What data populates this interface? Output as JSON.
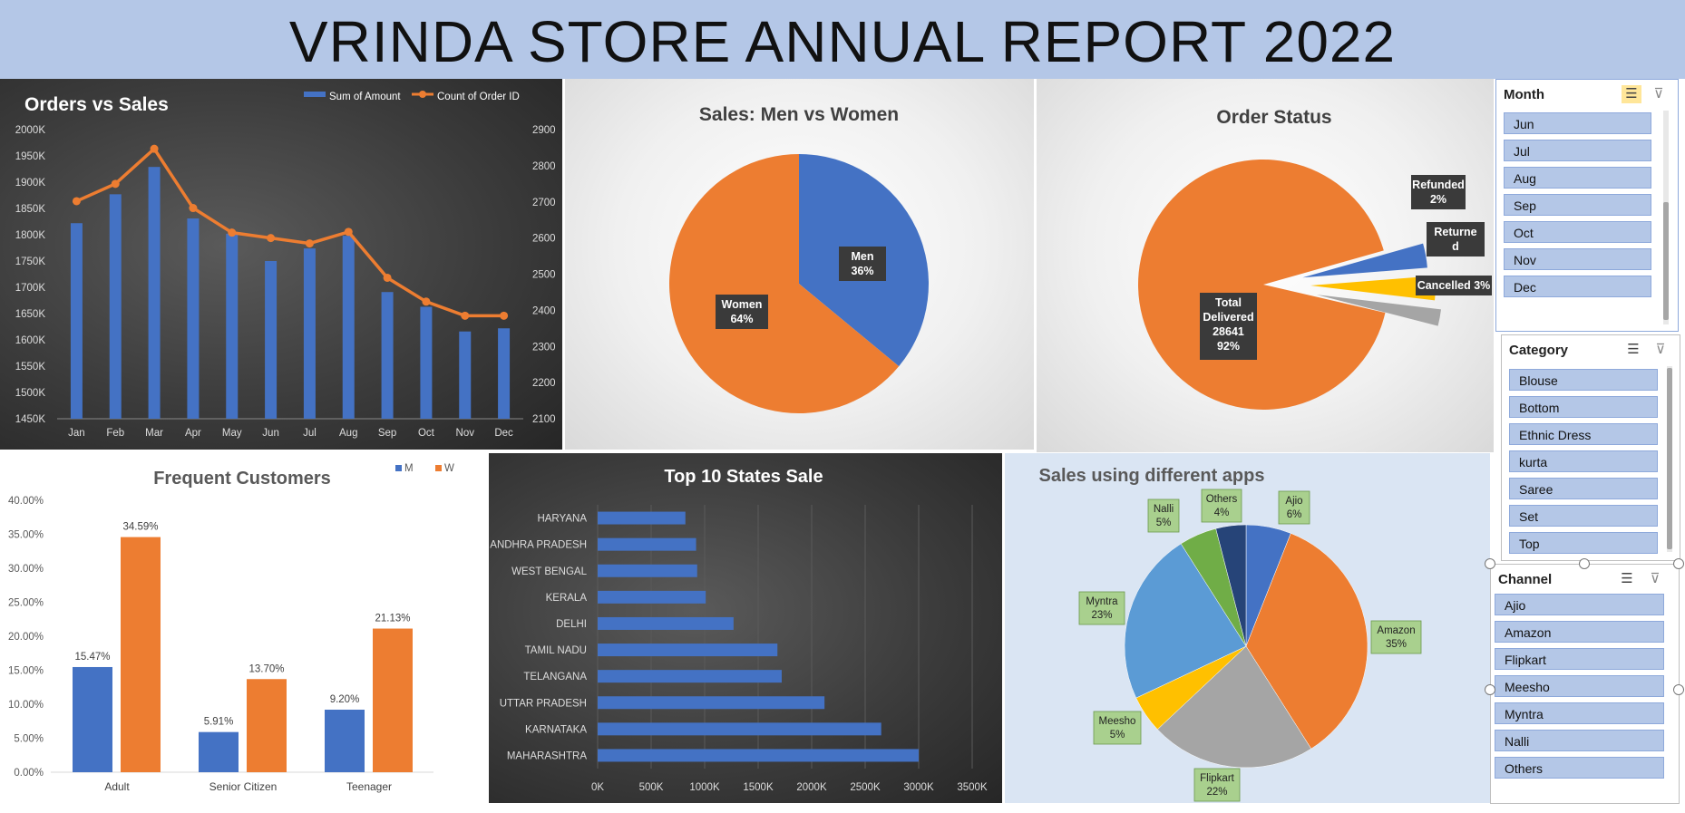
{
  "title": "VRINDA STORE ANNUAL REPORT 2022",
  "chart_data": [
    {
      "id": "orders_sales",
      "type": "bar+line",
      "title": "Orders vs Sales",
      "categories": [
        "Jan",
        "Feb",
        "Mar",
        "Apr",
        "May",
        "Jun",
        "Jul",
        "Aug",
        "Sep",
        "Oct",
        "Nov",
        "Dec"
      ],
      "series": [
        {
          "name": "Sum of Amount",
          "type": "bar",
          "axis": "left",
          "values": [
            1822000,
            1877000,
            1929000,
            1831000,
            1802000,
            1750000,
            1774000,
            1798000,
            1691000,
            1663000,
            1616000,
            1622000
          ]
        },
        {
          "name": "Count of Order ID",
          "type": "line",
          "axis": "right",
          "values": [
            2702,
            2750,
            2847,
            2683,
            2615,
            2600,
            2585,
            2617,
            2490,
            2424,
            2385,
            2385
          ]
        }
      ],
      "y_left": {
        "min": 1450000,
        "max": 2000000,
        "step": 50000,
        "ticks": [
          "1450K",
          "1500K",
          "1550K",
          "1600K",
          "1650K",
          "1700K",
          "1750K",
          "1800K",
          "1850K",
          "1900K",
          "1950K",
          "2000K"
        ]
      },
      "y_right": {
        "min": 2100,
        "max": 2900,
        "step": 100,
        "ticks": [
          "2100",
          "2200",
          "2300",
          "2400",
          "2500",
          "2600",
          "2700",
          "2800",
          "2900"
        ]
      },
      "legend": "top-right"
    },
    {
      "id": "men_women",
      "type": "pie",
      "title": "Sales: Men vs Women",
      "slices": [
        {
          "label": "Men",
          "value": 36,
          "text": "36%",
          "color": "#4472c4"
        },
        {
          "label": "Women",
          "value": 64,
          "text": "64%",
          "color": "#ed7d31"
        }
      ]
    },
    {
      "id": "order_status",
      "type": "pie",
      "title": "Order Status",
      "slices": [
        {
          "label": "Total Delivered",
          "value": 92,
          "count": "28641",
          "text": "92%",
          "color": "#ed7d31"
        },
        {
          "label": "Cancelled",
          "value": 3,
          "text": "3%",
          "color": "#4472c4"
        },
        {
          "label": "Returned",
          "value": 3,
          "text": "",
          "color": "#ffc000"
        },
        {
          "label": "Refunded",
          "value": 2,
          "text": "2%",
          "color": "#a5a5a5"
        }
      ],
      "label_lines": {
        "delivered": [
          "Total",
          "Delivered",
          "28641",
          "92%"
        ],
        "cancelled": "Cancelled 3%",
        "returned": [
          "Returne",
          "d"
        ],
        "refunded": [
          "Refunded",
          "2%"
        ]
      }
    },
    {
      "id": "frequent_customers",
      "type": "bar",
      "title": "Frequent Customers",
      "categories": [
        "Adult",
        "Senior Citizen",
        "Teenager"
      ],
      "series": [
        {
          "name": "M",
          "values": [
            15.47,
            5.91,
            9.2
          ],
          "labels": [
            "15.47%",
            "5.91%",
            "9.20%"
          ],
          "color": "#4472c4"
        },
        {
          "name": "W",
          "values": [
            34.59,
            13.7,
            21.13
          ],
          "labels": [
            "34.59%",
            "13.70%",
            "21.13%"
          ],
          "color": "#ed7d31"
        }
      ],
      "y": {
        "min": 0,
        "max": 40,
        "ticks": [
          "0.00%",
          "5.00%",
          "10.00%",
          "15.00%",
          "20.00%",
          "25.00%",
          "30.00%",
          "35.00%",
          "40.00%"
        ]
      },
      "legend": "top-right"
    },
    {
      "id": "top_states",
      "type": "bar",
      "orientation": "horizontal",
      "title": "Top 10 States Sale",
      "categories": [
        "HARYANA",
        "ANDHRA PRADESH",
        "WEST BENGAL",
        "KERALA",
        "DELHI",
        "TAMIL NADU",
        "TELANGANA",
        "UTTAR PRADESH",
        "KARNATAKA",
        "MAHARASHTRA"
      ],
      "values": [
        820000,
        920000,
        930000,
        1010000,
        1270000,
        1680000,
        1720000,
        2120000,
        2650000,
        3000000
      ],
      "x": {
        "min": 0,
        "max": 3500000,
        "ticks": [
          "0K",
          "500K",
          "1000K",
          "1500K",
          "2000K",
          "2500K",
          "3000K",
          "3500K"
        ]
      }
    },
    {
      "id": "apps",
      "type": "pie",
      "title": "Sales using different apps",
      "slices": [
        {
          "label": "Ajio",
          "value": 6,
          "text": "6%",
          "color": "#4472c4"
        },
        {
          "label": "Amazon",
          "value": 35,
          "text": "35%",
          "color": "#ed7d31"
        },
        {
          "label": "Flipkart",
          "value": 22,
          "text": "22%",
          "color": "#a5a5a5"
        },
        {
          "label": "Meesho",
          "value": 5,
          "text": "5%",
          "color": "#ffc000"
        },
        {
          "label": "Myntra",
          "value": 23,
          "text": "23%",
          "color": "#5b9bd5"
        },
        {
          "label": "Nalli",
          "value": 5,
          "text": "5%",
          "color": "#70ad47"
        },
        {
          "label": "Others",
          "value": 4,
          "text": "4%",
          "color": "#264478"
        }
      ]
    }
  ],
  "slicers": {
    "month": {
      "header": "Month",
      "items": [
        "Jun",
        "Jul",
        "Aug",
        "Sep",
        "Oct",
        "Nov",
        "Dec"
      ]
    },
    "category": {
      "header": "Category",
      "items": [
        "Blouse",
        "Bottom",
        "Ethnic Dress",
        "kurta",
        "Saree",
        "Set",
        "Top"
      ]
    },
    "channel": {
      "header": "Channel",
      "items": [
        "Ajio",
        "Amazon",
        "Flipkart",
        "Meesho",
        "Myntra",
        "Nalli",
        "Others"
      ]
    }
  },
  "icons": {
    "multi_select": "☰",
    "clear_filter": "⊽"
  }
}
